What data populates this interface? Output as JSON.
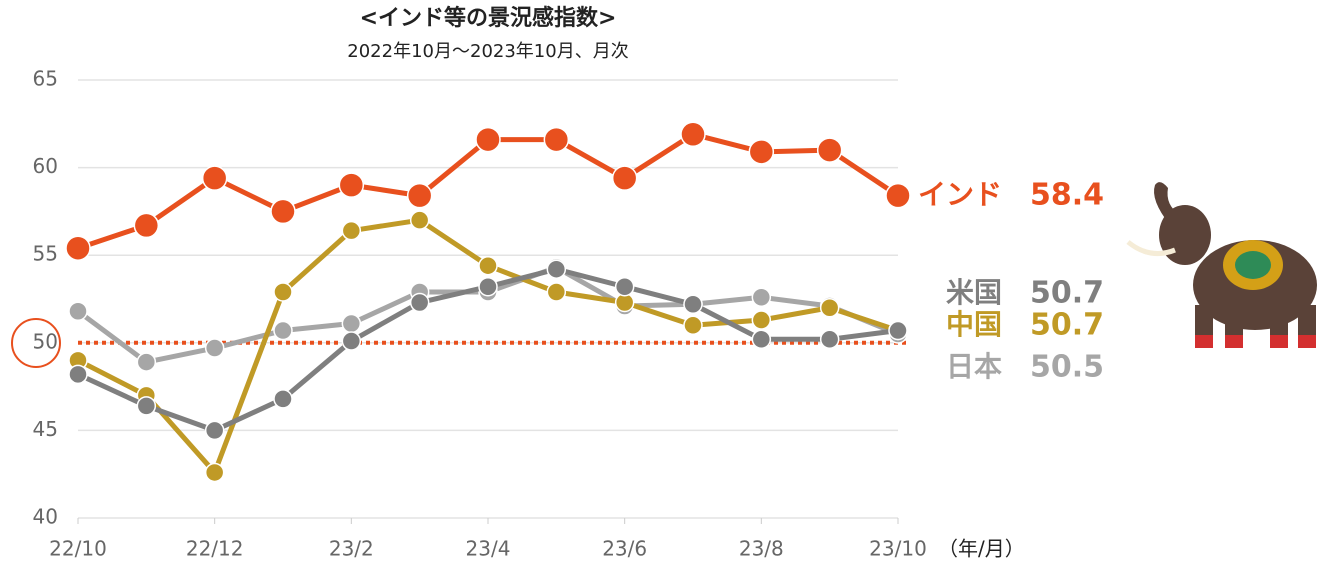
{
  "chart_data": {
    "type": "line",
    "title": "<インド等の景況感指数>",
    "subtitle": "2022年10月～2023年10月、月次",
    "x_unit": "（年/月）",
    "categories": [
      "22/10",
      null,
      "22/12",
      null,
      "23/2",
      null,
      "23/4",
      null,
      "23/6",
      null,
      "23/8",
      null,
      "23/10"
    ],
    "series": [
      {
        "name": "インド",
        "color": "#e8501e",
        "values": [
          55.4,
          56.7,
          59.4,
          57.5,
          59.0,
          58.4,
          61.6,
          61.6,
          59.4,
          61.9,
          60.9,
          61.0,
          58.4
        ]
      },
      {
        "name": "米国",
        "color": "#7f7f7f",
        "values": [
          48.2,
          46.4,
          45.0,
          46.8,
          50.1,
          52.3,
          53.2,
          54.2,
          53.2,
          52.2,
          50.2,
          50.2,
          50.7
        ]
      },
      {
        "name": "中国",
        "color": "#c09a26",
        "values": [
          49.0,
          47.0,
          42.6,
          52.9,
          56.4,
          57.0,
          54.4,
          52.9,
          52.3,
          51.0,
          51.3,
          52.0,
          50.7
        ]
      },
      {
        "name": "日本",
        "color": "#a6a6a6",
        "values": [
          51.8,
          48.9,
          49.7,
          50.7,
          51.1,
          52.9,
          52.9,
          54.3,
          52.1,
          52.2,
          52.6,
          52.1,
          50.5
        ]
      }
    ],
    "ylim": [
      40,
      65
    ],
    "yticks": [
      40,
      45,
      50,
      55,
      60,
      65
    ],
    "grid": true,
    "reference_line": {
      "value": 50,
      "color": "#e8501e"
    }
  }
}
